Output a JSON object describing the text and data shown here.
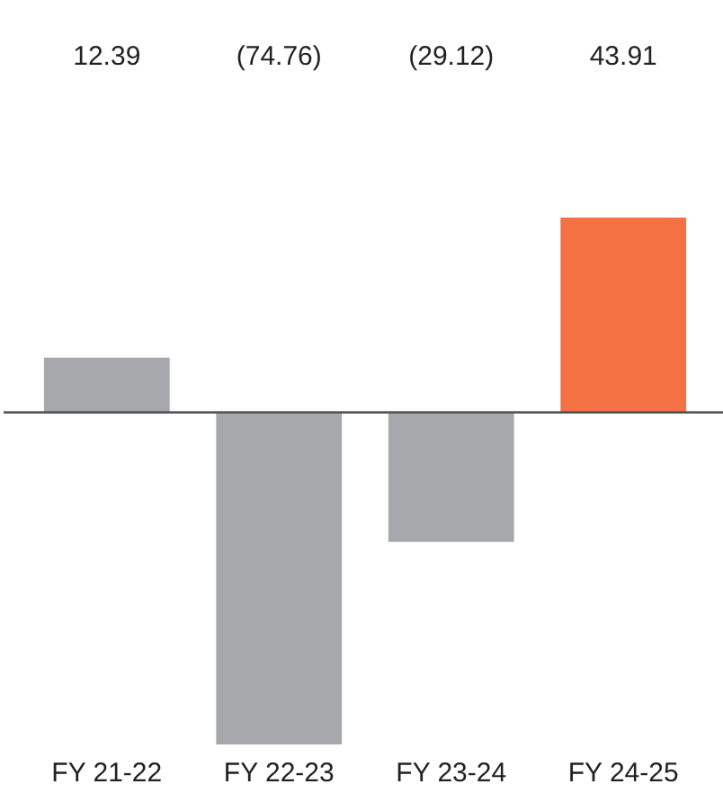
{
  "chart_data": {
    "type": "bar",
    "categories": [
      "FY 21-22",
      "FY 22-23",
      "FY 23-24",
      "FY 24-25"
    ],
    "values": [
      12.39,
      -74.76,
      -29.12,
      43.91
    ],
    "colors": [
      "#a7a8ab",
      "#a7a8ab",
      "#a7a8ab",
      "#f37142"
    ],
    "value_labels": [
      "12.39",
      "(74.76)",
      "(29.12)",
      "43.91"
    ]
  }
}
